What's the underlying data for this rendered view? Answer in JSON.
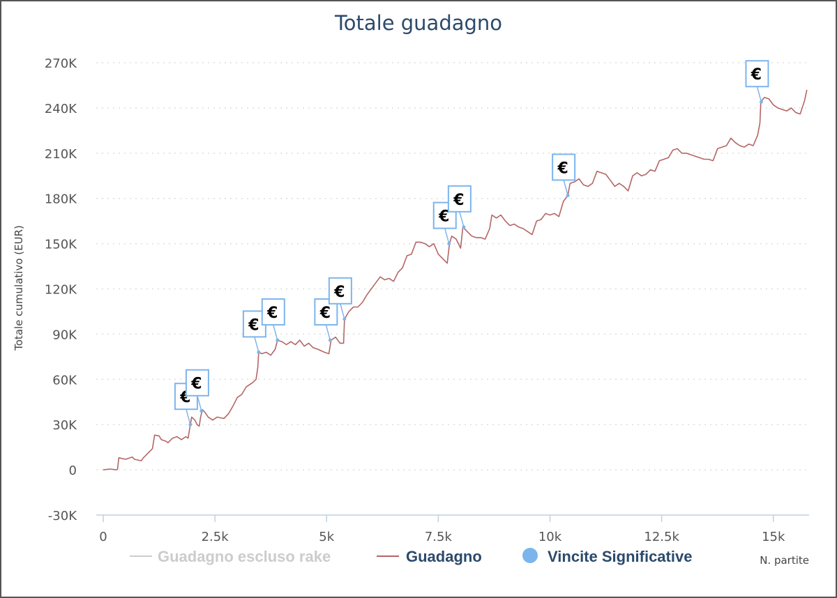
{
  "chart_data": {
    "type": "line",
    "title": "Totale guadagno",
    "ylabel": "Totale cumulativo (EUR)",
    "xlabel": "N. partite",
    "xlim": [
      0,
      15800
    ],
    "ylim": [
      -30000,
      270000
    ],
    "y_ticks": [
      -30000,
      0,
      30000,
      60000,
      90000,
      120000,
      150000,
      180000,
      210000,
      240000,
      270000
    ],
    "y_tick_labels": [
      "-30K",
      "0",
      "30K",
      "60K",
      "90K",
      "120K",
      "150K",
      "180K",
      "210K",
      "240K",
      "270K"
    ],
    "x_ticks": [
      0,
      2500,
      5000,
      7500,
      10000,
      12500,
      15000
    ],
    "x_tick_labels": [
      "0",
      "2.5k",
      "5k",
      "7.5k",
      "10k",
      "12.5k",
      "15k"
    ],
    "grid": true,
    "legend_position": "bottom-center",
    "series": [
      {
        "name": "Guadagno escluso rake",
        "color": "#cccccc",
        "visible": false,
        "points": []
      },
      {
        "name": "Guadagno",
        "color": "#b56565",
        "visible": true,
        "points": [
          [
            0,
            0
          ],
          [
            150,
            500
          ],
          [
            300,
            0
          ],
          [
            320,
            500
          ],
          [
            350,
            8000
          ],
          [
            500,
            7000
          ],
          [
            650,
            8500
          ],
          [
            700,
            7000
          ],
          [
            850,
            6000
          ],
          [
            900,
            8000
          ],
          [
            1000,
            11000
          ],
          [
            1100,
            14000
          ],
          [
            1150,
            23000
          ],
          [
            1250,
            22500
          ],
          [
            1300,
            20000
          ],
          [
            1400,
            19000
          ],
          [
            1450,
            18000
          ],
          [
            1550,
            21000
          ],
          [
            1650,
            22000
          ],
          [
            1750,
            20000
          ],
          [
            1850,
            22000
          ],
          [
            1900,
            21000
          ],
          [
            1950,
            30000
          ],
          [
            1980,
            35000
          ],
          [
            2050,
            33000
          ],
          [
            2100,
            30000
          ],
          [
            2150,
            29000
          ],
          [
            2180,
            35000
          ],
          [
            2220,
            40000
          ],
          [
            2280,
            38000
          ],
          [
            2350,
            35000
          ],
          [
            2450,
            33000
          ],
          [
            2550,
            35000
          ],
          [
            2700,
            34000
          ],
          [
            2800,
            37000
          ],
          [
            2900,
            42000
          ],
          [
            3000,
            48000
          ],
          [
            3100,
            50000
          ],
          [
            3200,
            55000
          ],
          [
            3300,
            57000
          ],
          [
            3350,
            58000
          ],
          [
            3420,
            60000
          ],
          [
            3460,
            68000
          ],
          [
            3480,
            78000
          ],
          [
            3550,
            77000
          ],
          [
            3650,
            78000
          ],
          [
            3750,
            76000
          ],
          [
            3850,
            80000
          ],
          [
            3900,
            86000
          ],
          [
            4000,
            85000
          ],
          [
            4100,
            83000
          ],
          [
            4200,
            85000
          ],
          [
            4300,
            83000
          ],
          [
            4400,
            86000
          ],
          [
            4500,
            82000
          ],
          [
            4600,
            84000
          ],
          [
            4700,
            81000
          ],
          [
            4800,
            80000
          ],
          [
            4950,
            78000
          ],
          [
            5050,
            77000
          ],
          [
            5100,
            86000
          ],
          [
            5200,
            88000
          ],
          [
            5300,
            84000
          ],
          [
            5380,
            84000
          ],
          [
            5400,
            100000
          ],
          [
            5500,
            105000
          ],
          [
            5600,
            108000
          ],
          [
            5700,
            108000
          ],
          [
            5800,
            111000
          ],
          [
            5900,
            116000
          ],
          [
            6000,
            120000
          ],
          [
            6100,
            124000
          ],
          [
            6200,
            128000
          ],
          [
            6300,
            126000
          ],
          [
            6400,
            127000
          ],
          [
            6500,
            125000
          ],
          [
            6600,
            131000
          ],
          [
            6700,
            134000
          ],
          [
            6800,
            142000
          ],
          [
            6900,
            143000
          ],
          [
            7000,
            151000
          ],
          [
            7100,
            151000
          ],
          [
            7200,
            150000
          ],
          [
            7300,
            148000
          ],
          [
            7400,
            150000
          ],
          [
            7500,
            143000
          ],
          [
            7600,
            140000
          ],
          [
            7700,
            137000
          ],
          [
            7750,
            150000
          ],
          [
            7800,
            155000
          ],
          [
            7900,
            153000
          ],
          [
            8000,
            147000
          ],
          [
            8050,
            161000
          ],
          [
            8150,
            158000
          ],
          [
            8250,
            155000
          ],
          [
            8350,
            154000
          ],
          [
            8450,
            154000
          ],
          [
            8550,
            153000
          ],
          [
            8650,
            160000
          ],
          [
            8700,
            169000
          ],
          [
            8800,
            167000
          ],
          [
            8900,
            169000
          ],
          [
            9000,
            165000
          ],
          [
            9100,
            162000
          ],
          [
            9200,
            163000
          ],
          [
            9300,
            161000
          ],
          [
            9400,
            160000
          ],
          [
            9500,
            158000
          ],
          [
            9600,
            156000
          ],
          [
            9700,
            165000
          ],
          [
            9800,
            166000
          ],
          [
            9900,
            170000
          ],
          [
            10000,
            169000
          ],
          [
            10100,
            170000
          ],
          [
            10200,
            168000
          ],
          [
            10300,
            178000
          ],
          [
            10400,
            182000
          ],
          [
            10450,
            190000
          ],
          [
            10550,
            191000
          ],
          [
            10650,
            193000
          ],
          [
            10750,
            189000
          ],
          [
            10850,
            188000
          ],
          [
            10950,
            190000
          ],
          [
            11050,
            198000
          ],
          [
            11150,
            197000
          ],
          [
            11250,
            196000
          ],
          [
            11350,
            192000
          ],
          [
            11450,
            188000
          ],
          [
            11550,
            190000
          ],
          [
            11650,
            188000
          ],
          [
            11750,
            185000
          ],
          [
            11850,
            195000
          ],
          [
            11950,
            197000
          ],
          [
            12050,
            195000
          ],
          [
            12150,
            196000
          ],
          [
            12250,
            199000
          ],
          [
            12350,
            198000
          ],
          [
            12450,
            205000
          ],
          [
            12550,
            206000
          ],
          [
            12650,
            207000
          ],
          [
            12750,
            212000
          ],
          [
            12850,
            213000
          ],
          [
            12950,
            210000
          ],
          [
            13050,
            210000
          ],
          [
            13150,
            209000
          ],
          [
            13250,
            208000
          ],
          [
            13350,
            207000
          ],
          [
            13450,
            206000
          ],
          [
            13550,
            206000
          ],
          [
            13650,
            205000
          ],
          [
            13750,
            213000
          ],
          [
            13850,
            214000
          ],
          [
            13950,
            215000
          ],
          [
            14050,
            220000
          ],
          [
            14150,
            217000
          ],
          [
            14250,
            215000
          ],
          [
            14350,
            214000
          ],
          [
            14450,
            216000
          ],
          [
            14550,
            215000
          ],
          [
            14650,
            222000
          ],
          [
            14700,
            230000
          ],
          [
            14720,
            244000
          ],
          [
            14800,
            247000
          ],
          [
            14900,
            246000
          ],
          [
            15000,
            242000
          ],
          [
            15100,
            240000
          ],
          [
            15200,
            239000
          ],
          [
            15300,
            238000
          ],
          [
            15400,
            240000
          ],
          [
            15500,
            237000
          ],
          [
            15600,
            236000
          ],
          [
            15700,
            245000
          ],
          [
            15750,
            252000
          ]
        ]
      },
      {
        "name": "Vincite Significative",
        "color": "#7cb5ec",
        "visible": true,
        "points": [
          [
            1950,
            30000
          ],
          [
            2200,
            39000
          ],
          [
            3480,
            78000
          ],
          [
            3900,
            86000
          ],
          [
            5080,
            86000
          ],
          [
            5400,
            100000
          ],
          [
            7740,
            150000
          ],
          [
            8070,
            161000
          ],
          [
            10400,
            182000
          ],
          [
            14730,
            244000
          ]
        ],
        "flag_symbol": "€"
      }
    ]
  }
}
